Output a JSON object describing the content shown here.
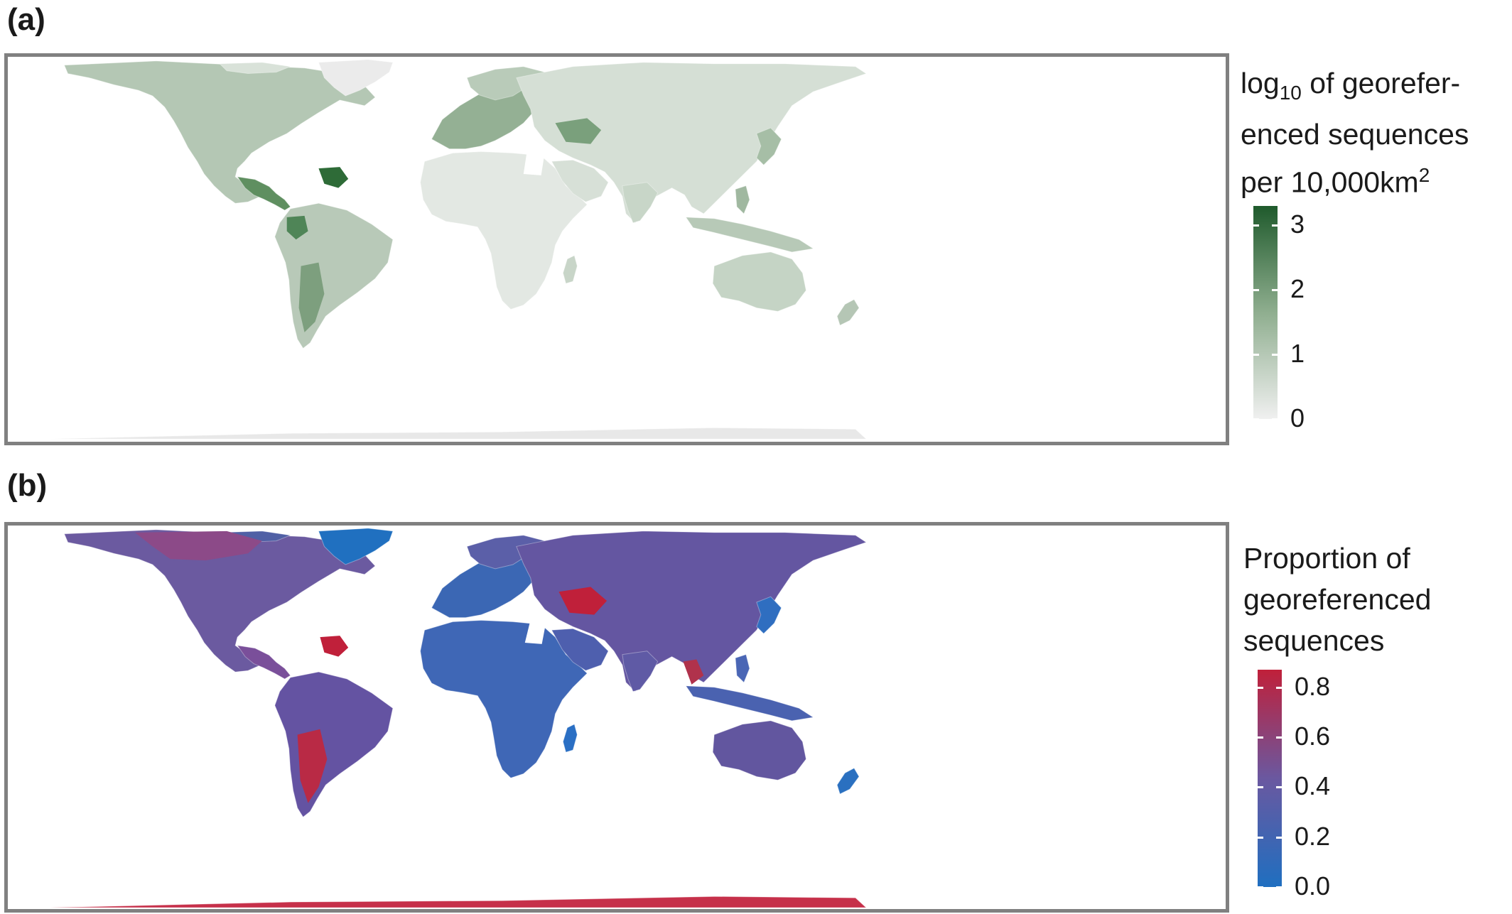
{
  "panels": [
    {
      "label": "(a)",
      "legend": {
        "title_lines": [
          "log",
          "10",
          " of georefer-",
          "enced sequences",
          "per 10,000km",
          "2"
        ],
        "ticks": [
          "3",
          "2",
          "1",
          "0"
        ],
        "tick_values": [
          3,
          2,
          1,
          0
        ],
        "range": [
          0,
          3.3
        ],
        "colors": {
          "low": "#f0f0f0",
          "mid": "#8fae8f",
          "high": "#1f5a2c"
        }
      },
      "colors": {
        "land": "#c5d3c5",
        "ocean": "#ffffff",
        "antarctica": "#e8e8e8",
        "greenland": "#ebebeb"
      }
    },
    {
      "label": "(b)",
      "legend": {
        "title_lines": [
          "Proportion of",
          "georeferenced",
          "sequences"
        ],
        "ticks": [
          "0.8",
          "0.6",
          "0.4",
          "0.2",
          "0.0"
        ],
        "tick_values": [
          0.8,
          0.6,
          0.4,
          0.2,
          0.0
        ],
        "range": [
          0,
          0.87
        ],
        "colors": {
          "low": "#1f6fc0",
          "mid": "#6a58a0",
          "high": "#c0203a"
        }
      },
      "colors": {
        "land": "#5c5aa0",
        "ocean": "#ffffff",
        "antarctica": "#c6304a",
        "greenland": "#2070c0"
      }
    }
  ]
}
